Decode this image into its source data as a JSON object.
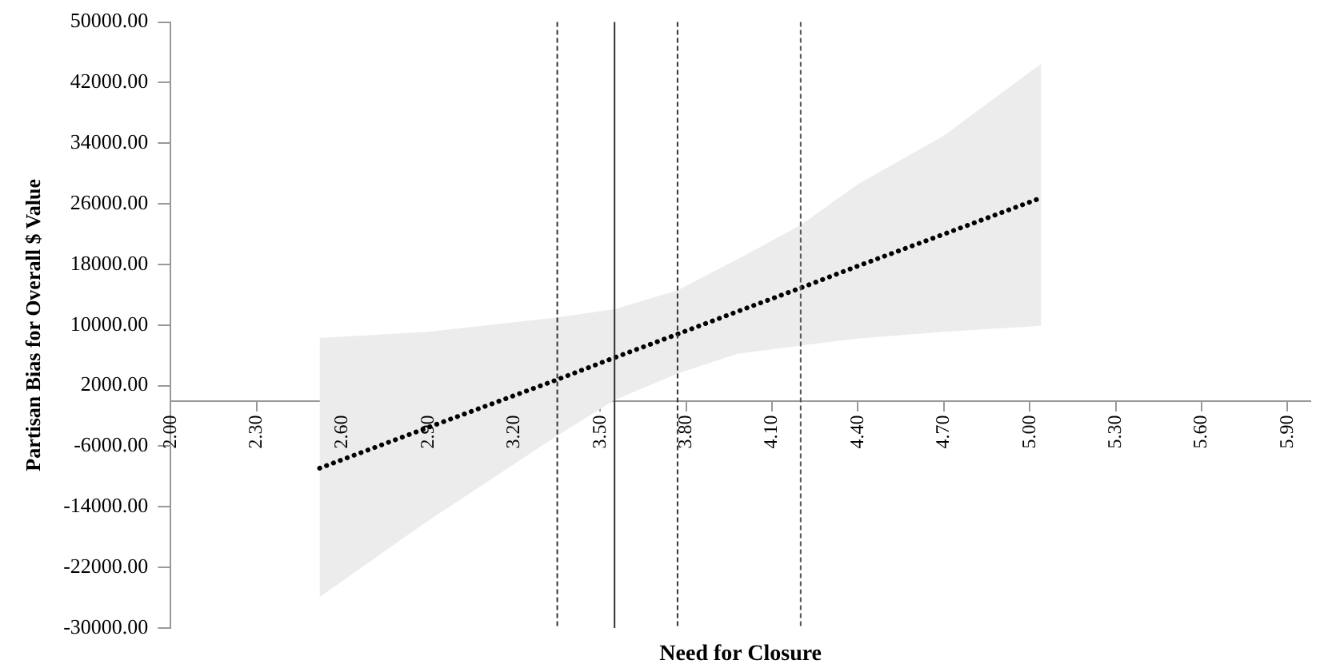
{
  "chart_data": {
    "type": "line",
    "xlabel": "Need for Closure",
    "ylabel": "Partisan Bias for Overall $ Value",
    "xlim": [
      2.0,
      5.98
    ],
    "ylim": [
      -30000,
      50000
    ],
    "xticks": [
      {
        "value": 2.0,
        "label": "2.00"
      },
      {
        "value": 2.3,
        "label": "2.30"
      },
      {
        "value": 2.6,
        "label": "2.60"
      },
      {
        "value": 2.9,
        "label": "2.90"
      },
      {
        "value": 3.2,
        "label": "3.20"
      },
      {
        "value": 3.5,
        "label": "3.50"
      },
      {
        "value": 3.8,
        "label": "3.80"
      },
      {
        "value": 4.1,
        "label": "4.10"
      },
      {
        "value": 4.4,
        "label": "4.40"
      },
      {
        "value": 4.7,
        "label": "4.70"
      },
      {
        "value": 5.0,
        "label": "5.00"
      },
      {
        "value": 5.3,
        "label": "5.30"
      },
      {
        "value": 5.6,
        "label": "5.60"
      },
      {
        "value": 5.9,
        "label": "5.90"
      }
    ],
    "yticks": [
      {
        "value": 50000,
        "label": "50000.00"
      },
      {
        "value": 42000,
        "label": "42000.00"
      },
      {
        "value": 34000,
        "label": "34000.00"
      },
      {
        "value": 26000,
        "label": "26000.00"
      },
      {
        "value": 18000,
        "label": "18000.00"
      },
      {
        "value": 10000,
        "label": "10000.00"
      },
      {
        "value": 2000,
        "label": "2000.00"
      },
      {
        "value": -6000,
        "label": "-6000.00"
      },
      {
        "value": -14000,
        "label": "-14000.00"
      },
      {
        "value": -22000,
        "label": "-22000.00"
      },
      {
        "value": -30000,
        "label": "-30000.00"
      }
    ],
    "series": [
      {
        "color": "#000000",
        "line_style": "dotted",
        "x": [
          2.52,
          2.9,
          3.35,
          3.55,
          3.77,
          3.98,
          4.2,
          4.4,
          4.7,
          5.04
        ],
        "values": [
          -8900,
          -3500,
          2800,
          5700,
          8800,
          11800,
          14900,
          17800,
          22000,
          26800
        ],
        "lower": [
          -25900,
          -15800,
          -4600,
          100,
          3600,
          6200,
          7300,
          8200,
          9100,
          9900
        ],
        "upper": [
          8300,
          9100,
          11000,
          12100,
          14600,
          18700,
          23200,
          28600,
          35000,
          44500
        ]
      }
    ],
    "marker": "none",
    "ref_lines": [
      {
        "axis": "x",
        "value": 3.35,
        "line_style": "dashed",
        "color": "#333333"
      },
      {
        "axis": "x",
        "value": 3.55,
        "line_style": "solid",
        "color": "#333333"
      },
      {
        "axis": "x",
        "value": 3.77,
        "line_style": "dashed",
        "color": "#333333"
      },
      {
        "axis": "x",
        "value": 4.2,
        "line_style": "dashed",
        "color": "#555555"
      }
    ]
  }
}
